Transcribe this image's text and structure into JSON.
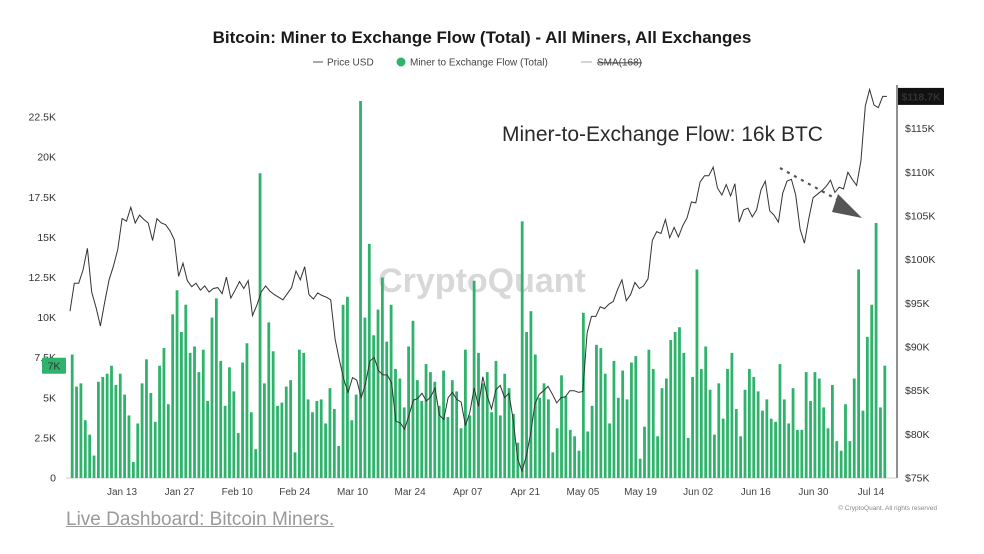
{
  "chart_data": {
    "type": "bar",
    "title": "Bitcoin: Miner to Exchange Flow (Total) - All Miners, All Exchanges",
    "legend": {
      "placement": "top-center",
      "items": [
        "Price USD",
        "Miner to Exchange Flow (Total)",
        "SMA(168)"
      ]
    },
    "series": [
      {
        "name": "Miner to Exchange Flow (Total)",
        "axis": "left",
        "color": "#2fb36c",
        "values": [
          7700,
          5700,
          5900,
          3600,
          2700,
          1400,
          6000,
          6300,
          6500,
          7000,
          5800,
          6500,
          5200,
          3900,
          1000,
          3400,
          5900,
          7400,
          5300,
          3500,
          7000,
          8100,
          4600,
          10200,
          11700,
          9100,
          10800,
          7800,
          8200,
          6600,
          8000,
          4800,
          10000,
          11200,
          7300,
          4500,
          6900,
          5400,
          2800,
          7200,
          8400,
          4100,
          1800,
          19000,
          5900,
          9700,
          7900,
          4500,
          4700,
          5700,
          6100,
          1600,
          8000,
          7800,
          4900,
          4100,
          4800,
          4900,
          3400,
          5600,
          4300,
          2000,
          10800,
          11300,
          3600,
          5200,
          23500,
          10000,
          14600,
          8900,
          10500,
          12500,
          8500,
          10800,
          6800,
          6200,
          4400,
          8200,
          9800,
          6100,
          4800,
          7100,
          6600,
          6000,
          4500,
          6700,
          3800,
          6100,
          5400,
          3100,
          8000,
          3900,
          12300,
          7800,
          5900,
          6600,
          4100,
          7300,
          3900,
          6500,
          5600,
          4000,
          2200,
          16000,
          9100,
          10400,
          7700,
          5000,
          5900,
          4900,
          1600,
          3100,
          6400,
          5100,
          3000,
          2600,
          1700,
          10300,
          2900,
          4500,
          8300,
          8100,
          6500,
          3400,
          7300,
          5000,
          6700,
          4900,
          7200,
          7600,
          1200,
          3200,
          8000,
          6800,
          2600,
          5600,
          6200,
          8600,
          9100,
          9400,
          7800,
          2500,
          6300,
          13000,
          6800,
          8200,
          5500,
          2700,
          5900,
          3700,
          6800,
          7800,
          4300,
          2600,
          5500,
          6800,
          6300,
          5400,
          4200,
          4900,
          3700,
          3500,
          7100,
          4900,
          3400,
          5600,
          3000,
          3000,
          6600,
          4800,
          6600,
          6200,
          4400,
          3100,
          5800,
          2300,
          1700,
          4600,
          2300,
          6200,
          13000,
          4200,
          8800,
          10800,
          15900,
          4400,
          7000
        ],
        "ylim": [
          0,
          24500
        ]
      },
      {
        "name": "Price USD",
        "axis": "right",
        "color": "#333333",
        "values": [
          94100,
          97300,
          97300,
          98800,
          101300,
          96300,
          94500,
          92400,
          95200,
          97700,
          99300,
          101200,
          104700,
          104400,
          106000,
          104200,
          105100,
          104600,
          104200,
          102200,
          104700,
          104200,
          104000,
          103300,
          102300,
          98100,
          99600,
          97600,
          96900,
          97300,
          96500,
          97000,
          96300,
          96700,
          96800,
          96100,
          98000,
          95600,
          96500,
          97500,
          96700,
          97600,
          93600,
          94800,
          96300,
          97000,
          96400,
          96000,
          95700,
          95400,
          96100,
          96800,
          98700,
          97700,
          99200,
          96000,
          95500,
          96200,
          95900,
          95700,
          95400,
          90900,
          88500,
          86300,
          84800,
          86500,
          86200,
          84200,
          85800,
          88400,
          88800,
          87300,
          86800,
          86800,
          85900,
          81500,
          81300,
          80600,
          82200,
          83900,
          84100,
          84700,
          83800,
          84300,
          85300,
          82200,
          81700,
          84200,
          84800,
          84000,
          83700,
          81000,
          82500,
          85300,
          83200,
          86600,
          84400,
          82900,
          85100,
          85600,
          84200,
          84700,
          81600,
          77200,
          75800,
          77500,
          80100,
          83500,
          84600,
          85000,
          85500,
          84600,
          83600,
          84200,
          84300,
          85000,
          85000,
          84800,
          84900,
          91600,
          93500,
          93500,
          94600,
          94400,
          94900,
          95200,
          96600,
          97700,
          95300,
          96000,
          97400,
          96700,
          97000,
          97800,
          102200,
          103200,
          103000,
          104600,
          102500,
          103700,
          102600,
          103900,
          104800,
          106600,
          106500,
          108900,
          109600,
          109600,
          110600,
          108200,
          107400,
          108600,
          107300,
          108700,
          104300,
          105700,
          105900,
          104900,
          105700,
          108000,
          109000,
          105600,
          105100,
          104300,
          107600,
          109000,
          109200,
          107400,
          103500,
          101900,
          104700,
          107100,
          107500,
          107900,
          108400,
          109100,
          107700,
          108300,
          108100,
          110000,
          109200,
          108500,
          111300,
          117600,
          119500,
          117700,
          117400,
          118700,
          118700
        ],
        "ylim": [
          75000,
          120000
        ]
      }
    ],
    "x_tick_labels": [
      "Jan 13",
      "Jan 27",
      "Feb 10",
      "Feb 24",
      "Mar 10",
      "Mar 24",
      "Apr 07",
      "Apr 21",
      "May 05",
      "May 19",
      "Jun 02",
      "Jun 16",
      "Jun 30",
      "Jul 14"
    ],
    "left_axis": {
      "ticks": [
        "0",
        "2.5K",
        "5K",
        "7.5K",
        "10K",
        "12.5K",
        "15K",
        "17.5K",
        "20K",
        "22.5K"
      ],
      "tick_values": [
        0,
        2500,
        5000,
        7500,
        10000,
        12500,
        15000,
        17500,
        20000,
        22500
      ],
      "current_badge": "7K",
      "current_value": 7000
    },
    "right_axis": {
      "ticks": [
        "$75K",
        "$80K",
        "$85K",
        "$90K",
        "$95K",
        "$100K",
        "$105K",
        "$110K",
        "$115K"
      ],
      "tick_values": [
        75000,
        80000,
        85000,
        90000,
        95000,
        100000,
        105000,
        110000,
        115000
      ],
      "current_badge": "$118.7K",
      "current_value": 118700
    },
    "annotation": "Miner-to-Exchange Flow: 16k BTC",
    "watermark": "CryptoQuant",
    "copyright": "© CryptoQuant. All rights reserved",
    "colors": {
      "bar": "#2fb36c",
      "price_line": "#333333",
      "badge_left": "#2fb36c",
      "badge_right": "#111111",
      "arrow": "#555555"
    }
  },
  "footer": {
    "link_text": "Live Dashboard: Bitcoin Miners."
  }
}
